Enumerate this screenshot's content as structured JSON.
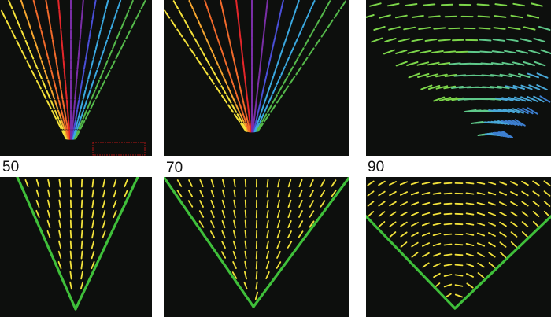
{
  "figure": {
    "columns": [
      {
        "angle_label": "50",
        "cone_half_angle_deg": 25,
        "top_palette": "rainbow"
      },
      {
        "angle_label": "70",
        "cone_half_angle_deg": 35,
        "top_palette": "rainbow"
      },
      {
        "angle_label": "90",
        "cone_half_angle_deg": 45,
        "top_palette": "green-blue"
      }
    ],
    "colors": {
      "panel_background": "#0d0f0d",
      "simulation_director": "#f2e23a",
      "cone_boundary": "#3fbf3a",
      "scale_box": "#b01515",
      "rainbow": [
        "#f5e23a",
        "#f6a630",
        "#f26a2b",
        "#e4262a",
        "#7a2ea6",
        "#4a4fd8",
        "#3aa8e0",
        "#54b84a"
      ],
      "green_blue": [
        "#7cd64a",
        "#5fc98a",
        "#49a8d8",
        "#3d7fd0"
      ]
    }
  }
}
